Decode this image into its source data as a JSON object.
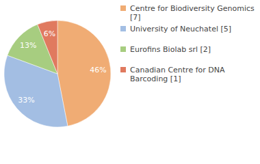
{
  "chart_data": {
    "type": "pie",
    "categories": [
      "Centre for Biodiversity Genomics [7]",
      "University of Neuchatel [5]",
      "Eurofins Biolab srl [2]",
      "Canadian Centre for DNA Barcoding [1]"
    ],
    "values": [
      46,
      33,
      13,
      6
    ],
    "value_labels": [
      "46%",
      "33%",
      "13%",
      "6%"
    ],
    "colors": [
      "#f0ac74",
      "#a3bee3",
      "#a7cd80",
      "#e07a5f"
    ],
    "data_labels": true,
    "legend": "right"
  }
}
